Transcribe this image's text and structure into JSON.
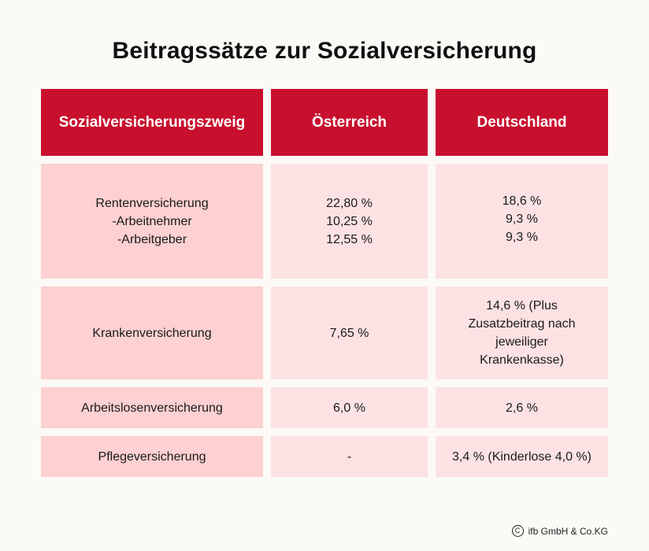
{
  "title": "Beitragssätze zur Sozialversicherung",
  "colors": {
    "header_bg": "#c8102e",
    "first_col_bg": "#fdd0d1",
    "cell_bg": "#fde2e3",
    "page_bg": "#fbfaf6"
  },
  "table": {
    "headers": [
      "Sozialversicherungszweig",
      "Österreich",
      "Deutschland"
    ],
    "rows": [
      {
        "zweig": [
          "Rentenversicherung",
          "-Arbeitnehmer",
          "-Arbeitgeber"
        ],
        "at": [
          "22,80 %",
          "10,25 %",
          "12,55 %"
        ],
        "de": [
          "18,6 %",
          "9,3 %",
          "9,3 %"
        ]
      },
      {
        "zweig": [
          "Krankenversicherung"
        ],
        "at": [
          "7,65 %"
        ],
        "de": [
          "14,6 % (Plus",
          "Zusatzbeitrag nach",
          "jeweiliger",
          "Krankenkasse)"
        ]
      },
      {
        "zweig": [
          "Arbeitslosenversicherung"
        ],
        "at": [
          "6,0 %"
        ],
        "de": [
          "2,6 %"
        ]
      },
      {
        "zweig": [
          "Pflegeversicherung"
        ],
        "at": [
          "-"
        ],
        "de": [
          "3,4 % (Kinderlose 4,0 %)"
        ]
      }
    ]
  },
  "footer": {
    "icon": "copyright-icon",
    "text": "ifb GmbH & Co.KG"
  }
}
